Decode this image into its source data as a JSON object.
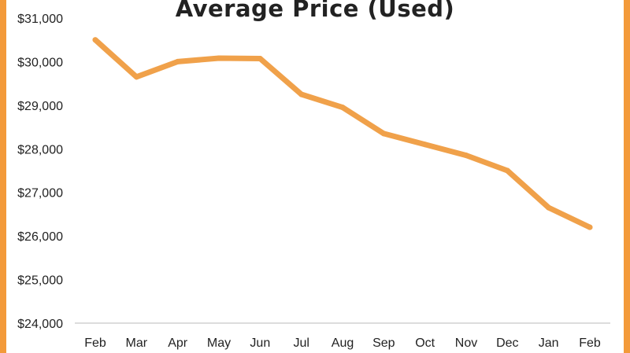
{
  "colors": {
    "frame": "#f39a3a",
    "line": "#f0a14a",
    "axis": "#d0d0d0"
  },
  "chart_data": {
    "type": "line",
    "title": "Average Price (Used)",
    "categories": [
      "Feb",
      "Mar",
      "Apr",
      "May",
      "Jun",
      "Jul",
      "Aug",
      "Sep",
      "Oct",
      "Nov",
      "Dec",
      "Jan",
      "Feb"
    ],
    "series": [
      {
        "values": [
          30500,
          29650,
          30000,
          30080,
          30070,
          29250,
          28950,
          28350,
          28100,
          27850,
          27500,
          26650,
          26200
        ]
      }
    ],
    "yticks": [
      24000,
      25000,
      26000,
      27000,
      28000,
      29000,
      30000,
      31000
    ],
    "ytick_labels": [
      "$24,000",
      "$25,000",
      "$26,000",
      "$27,000",
      "$28,000",
      "$29,000",
      "$30,000",
      "$31,000"
    ],
    "ylim": [
      24000,
      31000
    ],
    "grid": false,
    "legend": "none"
  }
}
